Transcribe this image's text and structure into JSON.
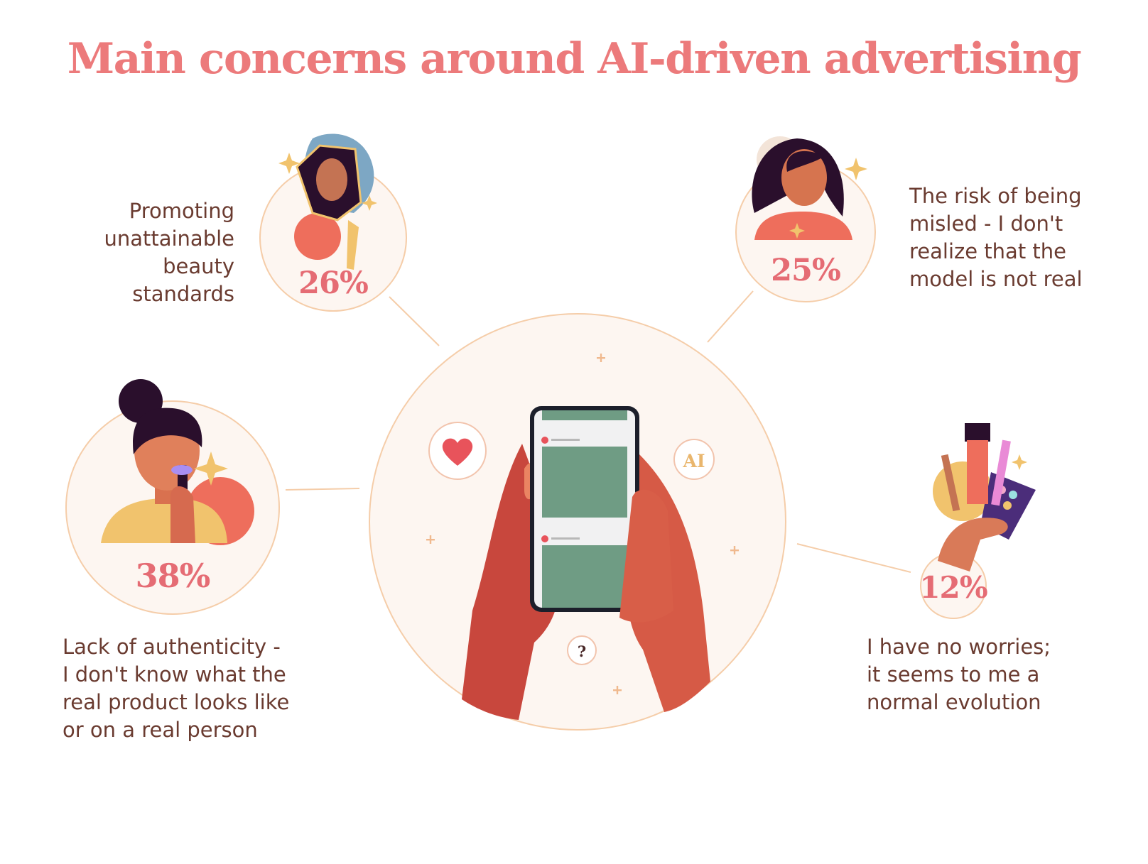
{
  "title": "Main concerns around AI-driven advertising",
  "chart_data": {
    "type": "bar",
    "title": "Main concerns around AI-driven advertising",
    "categories": [
      "Lack of authenticity - I don't know what the real product looks like or on a real person",
      "Promoting unattainable beauty standards",
      "The risk of being misled - I don't realize that the model is not real",
      "I have no worries; it seems to me a normal evolution"
    ],
    "values": [
      38,
      26,
      25,
      12
    ],
    "unit": "%"
  },
  "items": [
    {
      "value": 38,
      "pct": "38%",
      "label": "Lack of authenticity -\nI don't know what the\nreal product looks like\nor on a real person"
    },
    {
      "value": 26,
      "pct": "26%",
      "label": "Promoting\nunattainable\nbeauty\nstandards"
    },
    {
      "value": 25,
      "pct": "25%",
      "label": "The risk of being\nmisled - I don't\nrealize that the\nmodel is not real"
    },
    {
      "value": 12,
      "pct": "12%",
      "label": "I have no worries;\nit seems to me a\nnormal evolution"
    }
  ],
  "center": {
    "ai_badge": "AI",
    "question_badge": "?"
  },
  "colors": {
    "title": "#ec7a7b",
    "percent": "#e56c74",
    "circle_fill": "#fdf6f1",
    "circle_stroke": "#f5cda9",
    "text": "#6a3b30",
    "screen_card": "#6f9c84",
    "skin": "#d9584a"
  },
  "icons": [
    "heart-icon",
    "ai-badge-icon",
    "question-icon",
    "sparkle-icon",
    "plus-icon",
    "smartphone-icon",
    "hands-icon",
    "makeup-brushes-icon"
  ]
}
